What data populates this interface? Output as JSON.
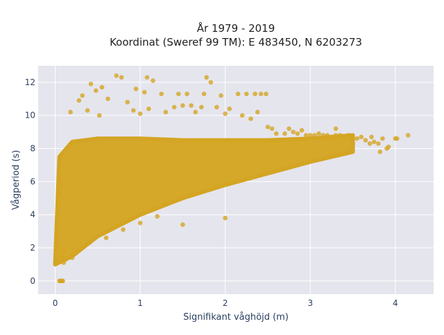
{
  "chart_data": {
    "type": "scatter",
    "title_lines": [
      "År 1979 - 2019",
      "Koordinat (Sweref 99 TM): E 483450, N 6203273"
    ],
    "xlabel": "Signifikant våghöjd (m)",
    "ylabel": "Vågperiod (s)",
    "xlim": [
      -0.2,
      4.45
    ],
    "ylim": [
      -0.8,
      13.0
    ],
    "xticks": [
      0,
      1,
      2,
      3,
      4
    ],
    "xtick_labels": [
      "0",
      "1",
      "2",
      "3",
      "4"
    ],
    "yticks": [
      0,
      2,
      4,
      6,
      8,
      10,
      12
    ],
    "ytick_labels": [
      "0",
      "2",
      "4",
      "6",
      "8",
      "10",
      "12"
    ],
    "grid": true,
    "legend": "none",
    "marker_color": "#D4A523",
    "plot_bg": "#E5E5EE",
    "approx_boundaries": {
      "lower_edge": [
        [
          0.0,
          1.0
        ],
        [
          0.2,
          1.5
        ],
        [
          0.5,
          2.7
        ],
        [
          1.0,
          4.0
        ],
        [
          1.5,
          5.0
        ],
        [
          2.0,
          5.8
        ],
        [
          2.5,
          6.5
        ],
        [
          3.0,
          7.2
        ],
        [
          3.5,
          7.8
        ]
      ],
      "upper_edge": [
        [
          0.05,
          7.5
        ],
        [
          0.2,
          8.4
        ],
        [
          0.5,
          8.6
        ],
        [
          1.0,
          8.6
        ],
        [
          1.5,
          8.5
        ],
        [
          2.0,
          8.5
        ],
        [
          2.5,
          8.5
        ],
        [
          3.0,
          8.6
        ],
        [
          3.5,
          8.8
        ]
      ]
    },
    "points": [
      [
        0.05,
        0.0
      ],
      [
        0.06,
        0.0
      ],
      [
        0.07,
        0.0
      ],
      [
        0.08,
        0.0
      ],
      [
        0.09,
        0.0
      ],
      [
        0.72,
        12.4
      ],
      [
        0.78,
        12.3
      ],
      [
        1.08,
        12.3
      ],
      [
        1.15,
        12.1
      ],
      [
        1.78,
        12.3
      ],
      [
        1.83,
        12.0
      ],
      [
        0.42,
        11.9
      ],
      [
        0.48,
        11.5
      ],
      [
        0.55,
        11.7
      ],
      [
        0.95,
        11.6
      ],
      [
        1.05,
        11.4
      ],
      [
        1.25,
        11.3
      ],
      [
        1.45,
        11.3
      ],
      [
        1.55,
        11.3
      ],
      [
        1.75,
        11.3
      ],
      [
        1.95,
        11.2
      ],
      [
        2.15,
        11.3
      ],
      [
        2.25,
        11.3
      ],
      [
        2.35,
        11.3
      ],
      [
        2.42,
        11.3
      ],
      [
        2.48,
        11.3
      ],
      [
        0.32,
        11.2
      ],
      [
        0.28,
        10.9
      ],
      [
        0.62,
        11.0
      ],
      [
        0.85,
        10.8
      ],
      [
        0.18,
        10.2
      ],
      [
        0.38,
        10.3
      ],
      [
        0.52,
        10.0
      ],
      [
        0.92,
        10.3
      ],
      [
        1.0,
        10.1
      ],
      [
        1.1,
        10.4
      ],
      [
        1.3,
        10.2
      ],
      [
        1.4,
        10.5
      ],
      [
        1.5,
        10.6
      ],
      [
        1.6,
        10.6
      ],
      [
        1.65,
        10.2
      ],
      [
        1.72,
        10.5
      ],
      [
        1.9,
        10.5
      ],
      [
        2.0,
        10.1
      ],
      [
        2.05,
        10.4
      ],
      [
        2.2,
        10.0
      ],
      [
        2.38,
        10.2
      ],
      [
        2.3,
        9.8
      ],
      [
        2.5,
        9.3
      ],
      [
        2.55,
        9.2
      ],
      [
        2.6,
        8.9
      ],
      [
        2.7,
        8.9
      ],
      [
        2.75,
        9.2
      ],
      [
        2.8,
        9.0
      ],
      [
        2.85,
        8.9
      ],
      [
        2.9,
        9.1
      ],
      [
        2.95,
        8.8
      ],
      [
        3.0,
        8.8
      ],
      [
        3.05,
        8.8
      ],
      [
        3.1,
        8.9
      ],
      [
        3.15,
        8.8
      ],
      [
        3.2,
        8.8
      ],
      [
        3.25,
        8.7
      ],
      [
        3.3,
        8.8
      ],
      [
        3.35,
        8.8
      ],
      [
        3.4,
        8.7
      ],
      [
        3.45,
        8.8
      ],
      [
        3.5,
        8.7
      ],
      [
        3.55,
        8.6
      ],
      [
        3.6,
        8.7
      ],
      [
        3.65,
        8.5
      ],
      [
        3.7,
        8.3
      ],
      [
        3.75,
        8.4
      ],
      [
        3.8,
        8.3
      ],
      [
        3.85,
        8.6
      ],
      [
        3.9,
        8.0
      ],
      [
        4.0,
        8.6
      ],
      [
        4.02,
        8.6
      ],
      [
        4.15,
        8.8
      ],
      [
        3.3,
        9.2
      ],
      [
        3.5,
        8.3
      ],
      [
        3.45,
        8.0
      ],
      [
        3.72,
        8.7
      ],
      [
        3.82,
        7.8
      ],
      [
        3.92,
        8.1
      ],
      [
        2.0,
        3.8
      ],
      [
        1.5,
        3.4
      ],
      [
        1.0,
        3.5
      ],
      [
        0.6,
        2.6
      ],
      [
        0.3,
        2.0
      ],
      [
        0.1,
        1.1
      ],
      [
        0.12,
        1.3
      ],
      [
        0.08,
        1.5
      ],
      [
        0.1,
        1.8
      ],
      [
        0.05,
        2.0
      ],
      [
        0.2,
        1.4
      ],
      [
        0.25,
        1.7
      ],
      [
        0.4,
        2.3
      ],
      [
        0.8,
        3.1
      ],
      [
        1.2,
        3.9
      ]
    ]
  }
}
